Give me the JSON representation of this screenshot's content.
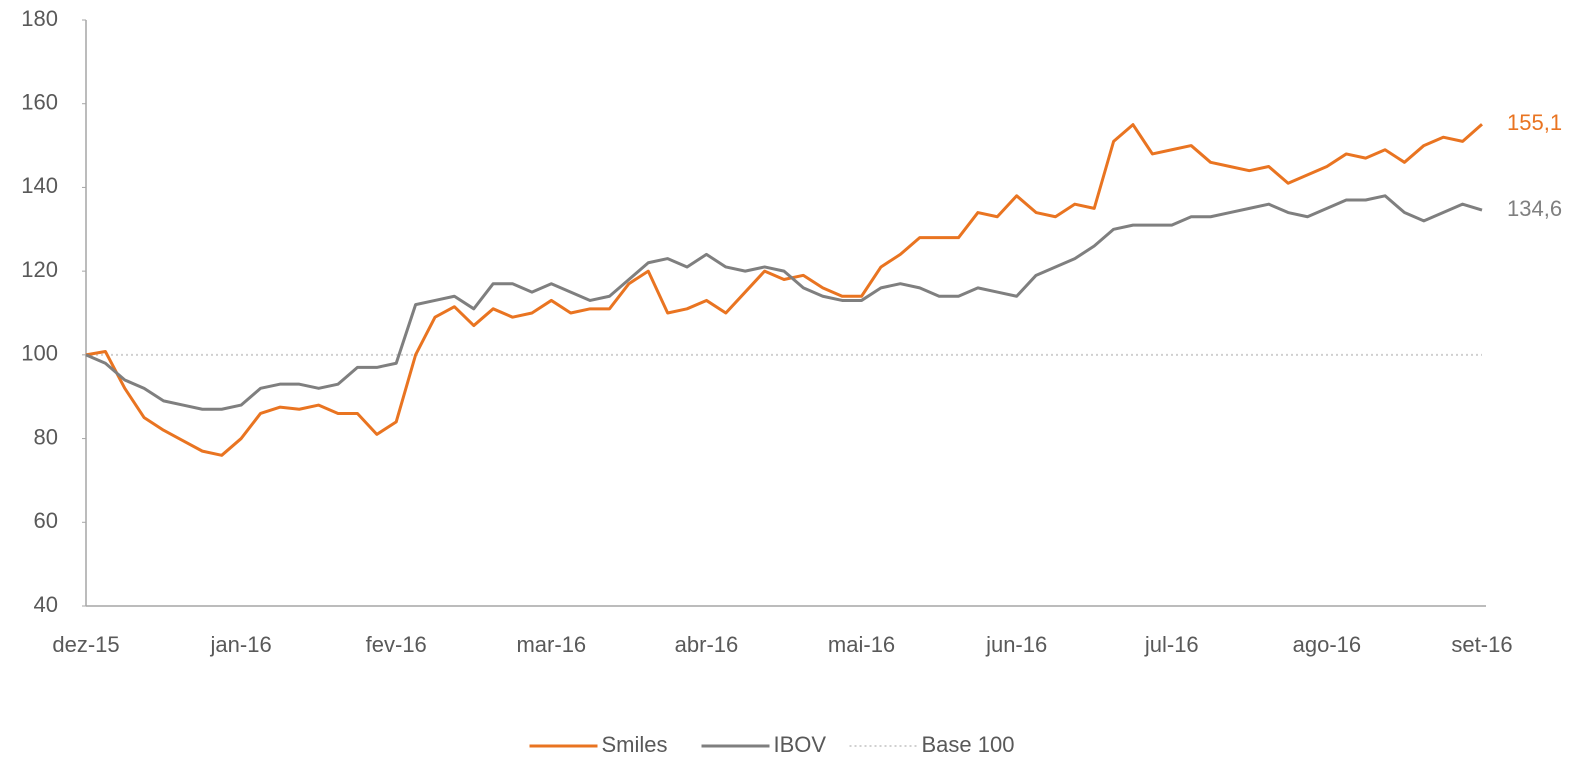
{
  "chart_data": {
    "type": "line",
    "categories": [
      "dez-15",
      null,
      null,
      null,
      null,
      null,
      null,
      null,
      "jan-16",
      null,
      null,
      null,
      null,
      null,
      null,
      null,
      "fev-16",
      null,
      null,
      null,
      null,
      null,
      null,
      null,
      "mar-16",
      null,
      null,
      null,
      null,
      null,
      null,
      null,
      "abr-16",
      null,
      null,
      null,
      null,
      null,
      null,
      null,
      "mai-16",
      null,
      null,
      null,
      null,
      null,
      null,
      null,
      "jun-16",
      null,
      null,
      null,
      null,
      null,
      null,
      null,
      "jul-16",
      null,
      null,
      null,
      null,
      null,
      null,
      null,
      "ago-16",
      null,
      null,
      null,
      null,
      null,
      null,
      null,
      "set-16"
    ],
    "series": [
      {
        "name": "Smiles",
        "color": "#e97421",
        "values": [
          100,
          100.8,
          92,
          85,
          82,
          79.5,
          77,
          76,
          80,
          86,
          87.5,
          87,
          88,
          86,
          86,
          81,
          84,
          100,
          109,
          111.5,
          107,
          111,
          109,
          110,
          113,
          110,
          111,
          111,
          117,
          120,
          110,
          111,
          113,
          110,
          115,
          120,
          118,
          119,
          116,
          114,
          114,
          121,
          124,
          128,
          128,
          128,
          134,
          133,
          138,
          134,
          133,
          136,
          135,
          151,
          155,
          148,
          149,
          150,
          146,
          145,
          144,
          145,
          141,
          143,
          145,
          148,
          147,
          149,
          146,
          150,
          152,
          151,
          155.1
        ],
        "value_labels": [
          null,
          null,
          null,
          null,
          null,
          null,
          null,
          null,
          null,
          null,
          null,
          null,
          null,
          null,
          null,
          null,
          null,
          null,
          null,
          null,
          null,
          null,
          null,
          null,
          null,
          null,
          null,
          null,
          null,
          null,
          null,
          null,
          null,
          null,
          null,
          null,
          null,
          null,
          null,
          null,
          null,
          null,
          null,
          null,
          null,
          null,
          null,
          null,
          null,
          null,
          null,
          null,
          null,
          null,
          null,
          null,
          null,
          null,
          null,
          null,
          null,
          null,
          null,
          null,
          null,
          null,
          null,
          null,
          null,
          null,
          null,
          null,
          "155,1"
        ]
      },
      {
        "name": "IBOV",
        "color": "#7f7f7f",
        "values": [
          100,
          98,
          94,
          92,
          89,
          88,
          87,
          87,
          88,
          92,
          93,
          93,
          92,
          93,
          97,
          97,
          98,
          112,
          113,
          114,
          111,
          117,
          117,
          115,
          117,
          115,
          113,
          114,
          118,
          122,
          123,
          121,
          124,
          121,
          120,
          121,
          120,
          116,
          114,
          113,
          113,
          116,
          117,
          116,
          114,
          114,
          116,
          115,
          114,
          119,
          121,
          123,
          126,
          130,
          131,
          131,
          131,
          133,
          133,
          134,
          135,
          136,
          134,
          133,
          135,
          137,
          137,
          138,
          134,
          132,
          134,
          136,
          134.6
        ],
        "value_labels": [
          null,
          null,
          null,
          null,
          null,
          null,
          null,
          null,
          null,
          null,
          null,
          null,
          null,
          null,
          null,
          null,
          null,
          null,
          null,
          null,
          null,
          null,
          null,
          null,
          null,
          null,
          null,
          null,
          null,
          null,
          null,
          null,
          null,
          null,
          null,
          null,
          null,
          null,
          null,
          null,
          null,
          null,
          null,
          null,
          null,
          null,
          null,
          null,
          null,
          null,
          null,
          null,
          null,
          null,
          null,
          null,
          null,
          null,
          null,
          null,
          null,
          null,
          null,
          null,
          null,
          null,
          null,
          null,
          null,
          null,
          null,
          null,
          "134,6"
        ]
      }
    ],
    "reference_lines": [
      {
        "name": "Base 100",
        "value": 100,
        "color": "#d0d0d0"
      }
    ],
    "ylim": [
      40,
      180
    ],
    "yticks": [
      40,
      60,
      80,
      100,
      120,
      140,
      160,
      180
    ],
    "grid": false,
    "legend": "bottom"
  }
}
